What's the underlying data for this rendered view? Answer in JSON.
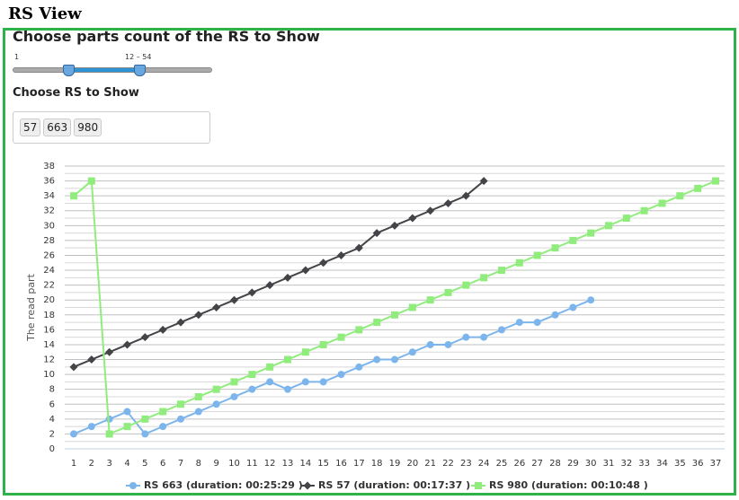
{
  "header": {
    "title": "RS View"
  },
  "controls": {
    "parts_heading": "Choose parts count of the RS to Show",
    "slider_min_label": "1",
    "slider_range_label": "12 – 54",
    "rs_heading": "Choose RS to Show",
    "tags": [
      "57",
      "663",
      "980"
    ]
  },
  "chart_data": {
    "type": "line",
    "y_label": "The read part",
    "categories": [
      1,
      2,
      3,
      4,
      5,
      6,
      7,
      8,
      9,
      10,
      11,
      12,
      13,
      14,
      15,
      16,
      17,
      18,
      19,
      20,
      21,
      22,
      23,
      24,
      25,
      26,
      27,
      28,
      29,
      30,
      31,
      32,
      33,
      34,
      35,
      36,
      37
    ],
    "ylim": [
      0,
      38
    ],
    "yticks": [
      0,
      2,
      4,
      6,
      8,
      10,
      12,
      14,
      16,
      18,
      20,
      22,
      24,
      26,
      28,
      30,
      32,
      34,
      36,
      38
    ],
    "minor_yticks": [
      1,
      3,
      5,
      7,
      9,
      11,
      13,
      15,
      17,
      19,
      21,
      23,
      25,
      27,
      29,
      31,
      33,
      35,
      37
    ],
    "grid": true,
    "legend": "bottom",
    "series": [
      {
        "name": "RS 663 (duration: 00:25:29 )",
        "color": "#7cb5ec",
        "marker": "circle",
        "values": [
          2,
          3,
          4,
          5,
          2,
          3,
          4,
          5,
          6,
          7,
          8,
          9,
          8,
          9,
          9,
          10,
          11,
          12,
          12,
          13,
          14,
          14,
          15,
          15,
          16,
          17,
          17,
          18,
          19,
          20,
          null,
          null,
          null,
          null,
          null,
          null,
          null
        ]
      },
      {
        "name": "RS 57 (duration: 00:17:37 )",
        "color": "#434348",
        "marker": "diamond",
        "values": [
          11,
          12,
          13,
          14,
          15,
          16,
          17,
          18,
          19,
          20,
          21,
          22,
          23,
          24,
          25,
          26,
          27,
          29,
          30,
          31,
          32,
          33,
          34,
          36,
          null,
          null,
          null,
          null,
          null,
          null,
          null,
          null,
          null,
          null,
          null,
          null,
          null
        ]
      },
      {
        "name": "RS 980 (duration: 00:10:48 )",
        "color": "#90ed7d",
        "marker": "square",
        "values": [
          34,
          36,
          2,
          3,
          4,
          5,
          6,
          7,
          8,
          9,
          10,
          11,
          12,
          13,
          14,
          15,
          16,
          17,
          18,
          19,
          20,
          21,
          22,
          23,
          24,
          25,
          26,
          27,
          28,
          29,
          30,
          31,
          32,
          33,
          34,
          35,
          36
        ]
      }
    ]
  }
}
